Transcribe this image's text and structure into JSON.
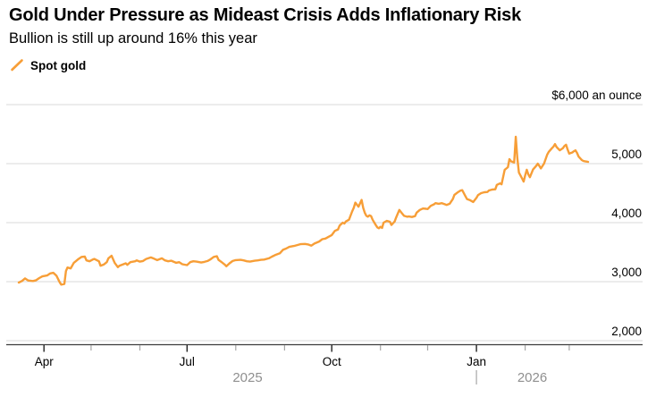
{
  "page": {
    "background": "#ffffff"
  },
  "header": {
    "title": "Gold Under Pressure as Mideast Crisis Adds Inflationary Risk",
    "subtitle": "Bullion is still up around 16% this year"
  },
  "legend": {
    "items": [
      {
        "label": "Spot gold",
        "marker": "diagonal-line",
        "color": "#F79E37"
      }
    ]
  },
  "style": {
    "line_color": "#F79E37",
    "grid_color": "#d8d8d8",
    "axis_color": "#3d3d3d",
    "tick_major_color": "#222222",
    "tick_minor_color": "#a6a6a6",
    "text_color": "#000000",
    "year_text_color": "#8f8f8f"
  },
  "chart_data": {
    "type": "line",
    "title": "Gold Under Pressure as Mideast Crisis Adds Inflationary Risk",
    "subtitle": "Bullion is still up around 16% this year",
    "unit_top_label": "$6,000 an ounce",
    "legend_position": "top-left",
    "grid": "horizontal",
    "x_range": [
      "2025-03-16",
      "2026-03-13"
    ],
    "y_axis": {
      "min": 2000,
      "max": 6000,
      "side": "right",
      "ticks": [
        {
          "value": 6000,
          "label": "$6,000 an ounce"
        },
        {
          "value": 5000,
          "label": "5,000"
        },
        {
          "value": 4000,
          "label": "4,000"
        },
        {
          "value": 3000,
          "label": "3,000"
        },
        {
          "value": 2000,
          "label": "2,000"
        }
      ]
    },
    "x_axis": {
      "major_ticks": [
        {
          "date": "2025-04-01",
          "label": "Apr"
        },
        {
          "date": "2025-07-01",
          "label": "Jul"
        },
        {
          "date": "2025-10-01",
          "label": "Oct"
        },
        {
          "date": "2026-01-01",
          "label": "Jan"
        }
      ],
      "minor_ticks": [
        "2025-05-01",
        "2025-06-01",
        "2025-08-01",
        "2025-09-01",
        "2025-11-01",
        "2025-12-01",
        "2026-02-01",
        "2026-03-01"
      ],
      "year_divider": "2026-01-01",
      "year_labels": [
        {
          "label": "2025",
          "span": [
            "2025-03-16",
            "2026-01-01"
          ]
        },
        {
          "label": "2026",
          "span": [
            "2026-01-01",
            "2026-03-13"
          ]
        }
      ]
    },
    "series": [
      {
        "name": "Spot gold",
        "color": "#F79E37",
        "points": [
          [
            "2025-03-16",
            2985
          ],
          [
            "2025-03-18",
            3010
          ],
          [
            "2025-03-20",
            3055
          ],
          [
            "2025-03-22",
            3020
          ],
          [
            "2025-03-25",
            3010
          ],
          [
            "2025-03-27",
            3025
          ],
          [
            "2025-03-29",
            3060
          ],
          [
            "2025-03-31",
            3090
          ],
          [
            "2025-04-03",
            3105
          ],
          [
            "2025-04-05",
            3140
          ],
          [
            "2025-04-07",
            3150
          ],
          [
            "2025-04-09",
            3100
          ],
          [
            "2025-04-11",
            2990
          ],
          [
            "2025-04-12",
            2950
          ],
          [
            "2025-04-14",
            2960
          ],
          [
            "2025-04-15",
            3180
          ],
          [
            "2025-04-16",
            3240
          ],
          [
            "2025-04-18",
            3225
          ],
          [
            "2025-04-20",
            3320
          ],
          [
            "2025-04-21",
            3340
          ],
          [
            "2025-04-23",
            3385
          ],
          [
            "2025-04-25",
            3420
          ],
          [
            "2025-04-27",
            3425
          ],
          [
            "2025-04-28",
            3360
          ],
          [
            "2025-04-30",
            3345
          ],
          [
            "2025-05-02",
            3375
          ],
          [
            "2025-05-03",
            3385
          ],
          [
            "2025-05-06",
            3345
          ],
          [
            "2025-05-07",
            3270
          ],
          [
            "2025-05-09",
            3290
          ],
          [
            "2025-05-11",
            3330
          ],
          [
            "2025-05-12",
            3395
          ],
          [
            "2025-05-14",
            3440
          ],
          [
            "2025-05-16",
            3320
          ],
          [
            "2025-05-18",
            3245
          ],
          [
            "2025-05-19",
            3270
          ],
          [
            "2025-05-21",
            3290
          ],
          [
            "2025-05-23",
            3310
          ],
          [
            "2025-05-24",
            3285
          ],
          [
            "2025-05-26",
            3330
          ],
          [
            "2025-05-29",
            3345
          ],
          [
            "2025-05-30",
            3360
          ],
          [
            "2025-06-01",
            3340
          ],
          [
            "2025-06-03",
            3350
          ],
          [
            "2025-06-05",
            3385
          ],
          [
            "2025-06-08",
            3410
          ],
          [
            "2025-06-10",
            3390
          ],
          [
            "2025-06-12",
            3365
          ],
          [
            "2025-06-15",
            3395
          ],
          [
            "2025-06-17",
            3360
          ],
          [
            "2025-06-19",
            3345
          ],
          [
            "2025-06-21",
            3355
          ],
          [
            "2025-06-24",
            3320
          ],
          [
            "2025-06-26",
            3330
          ],
          [
            "2025-06-28",
            3295
          ],
          [
            "2025-07-01",
            3280
          ],
          [
            "2025-07-03",
            3330
          ],
          [
            "2025-07-05",
            3345
          ],
          [
            "2025-07-07",
            3340
          ],
          [
            "2025-07-10",
            3325
          ],
          [
            "2025-07-12",
            3335
          ],
          [
            "2025-07-14",
            3350
          ],
          [
            "2025-07-16",
            3380
          ],
          [
            "2025-07-18",
            3420
          ],
          [
            "2025-07-20",
            3430
          ],
          [
            "2025-07-21",
            3370
          ],
          [
            "2025-07-23",
            3330
          ],
          [
            "2025-07-25",
            3290
          ],
          [
            "2025-07-26",
            3260
          ],
          [
            "2025-07-28",
            3310
          ],
          [
            "2025-07-30",
            3350
          ],
          [
            "2025-08-01",
            3365
          ],
          [
            "2025-08-04",
            3370
          ],
          [
            "2025-08-06",
            3360
          ],
          [
            "2025-08-08",
            3345
          ],
          [
            "2025-08-10",
            3340
          ],
          [
            "2025-08-13",
            3355
          ],
          [
            "2025-08-15",
            3360
          ],
          [
            "2025-08-17",
            3370
          ],
          [
            "2025-08-19",
            3375
          ],
          [
            "2025-08-22",
            3395
          ],
          [
            "2025-08-24",
            3425
          ],
          [
            "2025-08-26",
            3450
          ],
          [
            "2025-08-29",
            3480
          ],
          [
            "2025-08-31",
            3540
          ],
          [
            "2025-09-02",
            3560
          ],
          [
            "2025-09-04",
            3590
          ],
          [
            "2025-09-07",
            3605
          ],
          [
            "2025-09-09",
            3620
          ],
          [
            "2025-09-11",
            3635
          ],
          [
            "2025-09-14",
            3640
          ],
          [
            "2025-09-16",
            3630
          ],
          [
            "2025-09-18",
            3610
          ],
          [
            "2025-09-20",
            3645
          ],
          [
            "2025-09-23",
            3680
          ],
          [
            "2025-09-25",
            3720
          ],
          [
            "2025-09-27",
            3730
          ],
          [
            "2025-09-29",
            3760
          ],
          [
            "2025-10-01",
            3790
          ],
          [
            "2025-10-03",
            3860
          ],
          [
            "2025-10-05",
            3885
          ],
          [
            "2025-10-06",
            3950
          ],
          [
            "2025-10-08",
            4000
          ],
          [
            "2025-10-09",
            3985
          ],
          [
            "2025-10-10",
            4020
          ],
          [
            "2025-10-12",
            4050
          ],
          [
            "2025-10-14",
            4190
          ],
          [
            "2025-10-15",
            4250
          ],
          [
            "2025-10-16",
            4340
          ],
          [
            "2025-10-18",
            4270
          ],
          [
            "2025-10-20",
            4385
          ],
          [
            "2025-10-21",
            4250
          ],
          [
            "2025-10-22",
            4170
          ],
          [
            "2025-10-23",
            4115
          ],
          [
            "2025-10-24",
            4100
          ],
          [
            "2025-10-25",
            4125
          ],
          [
            "2025-10-26",
            4110
          ],
          [
            "2025-10-27",
            4050
          ],
          [
            "2025-10-29",
            3960
          ],
          [
            "2025-10-30",
            3920
          ],
          [
            "2025-10-31",
            3905
          ],
          [
            "2025-11-01",
            3930
          ],
          [
            "2025-11-02",
            3910
          ],
          [
            "2025-11-03",
            4000
          ],
          [
            "2025-11-05",
            4030
          ],
          [
            "2025-11-07",
            4015
          ],
          [
            "2025-11-08",
            3960
          ],
          [
            "2025-11-10",
            4020
          ],
          [
            "2025-11-11",
            4090
          ],
          [
            "2025-11-13",
            4215
          ],
          [
            "2025-11-14",
            4180
          ],
          [
            "2025-11-16",
            4115
          ],
          [
            "2025-11-18",
            4100
          ],
          [
            "2025-11-19",
            4105
          ],
          [
            "2025-11-21",
            4095
          ],
          [
            "2025-11-23",
            4110
          ],
          [
            "2025-11-24",
            4170
          ],
          [
            "2025-11-26",
            4215
          ],
          [
            "2025-11-28",
            4240
          ],
          [
            "2025-11-30",
            4235
          ],
          [
            "2025-12-01",
            4230
          ],
          [
            "2025-12-03",
            4285
          ],
          [
            "2025-12-05",
            4310
          ],
          [
            "2025-12-06",
            4330
          ],
          [
            "2025-12-08",
            4320
          ],
          [
            "2025-12-10",
            4330
          ],
          [
            "2025-12-12",
            4310
          ],
          [
            "2025-12-13",
            4300
          ],
          [
            "2025-12-15",
            4320
          ],
          [
            "2025-12-17",
            4400
          ],
          [
            "2025-12-18",
            4470
          ],
          [
            "2025-12-20",
            4510
          ],
          [
            "2025-12-22",
            4545
          ],
          [
            "2025-12-23",
            4550
          ],
          [
            "2025-12-25",
            4450
          ],
          [
            "2025-12-26",
            4400
          ],
          [
            "2025-12-28",
            4380
          ],
          [
            "2025-12-30",
            4350
          ],
          [
            "2026-01-01",
            4420
          ],
          [
            "2026-01-02",
            4465
          ],
          [
            "2026-01-04",
            4500
          ],
          [
            "2026-01-06",
            4515
          ],
          [
            "2026-01-08",
            4520
          ],
          [
            "2026-01-09",
            4545
          ],
          [
            "2026-01-11",
            4560
          ],
          [
            "2026-01-13",
            4565
          ],
          [
            "2026-01-14",
            4640
          ],
          [
            "2026-01-16",
            4665
          ],
          [
            "2026-01-17",
            4650
          ],
          [
            "2026-01-19",
            4895
          ],
          [
            "2026-01-21",
            4940
          ],
          [
            "2026-01-22",
            5075
          ],
          [
            "2026-01-23",
            5040
          ],
          [
            "2026-01-25",
            5020
          ],
          [
            "2026-01-26",
            5455
          ],
          [
            "2026-01-27",
            5100
          ],
          [
            "2026-01-28",
            4850
          ],
          [
            "2026-01-30",
            4750
          ],
          [
            "2026-01-31",
            4695
          ],
          [
            "2026-02-01",
            4800
          ],
          [
            "2026-02-02",
            4895
          ],
          [
            "2026-02-03",
            4820
          ],
          [
            "2026-02-04",
            4770
          ],
          [
            "2026-02-06",
            4900
          ],
          [
            "2026-02-08",
            4960
          ],
          [
            "2026-02-09",
            5000
          ],
          [
            "2026-02-10",
            4960
          ],
          [
            "2026-02-11",
            4920
          ],
          [
            "2026-02-13",
            5000
          ],
          [
            "2026-02-15",
            5150
          ],
          [
            "2026-02-16",
            5200
          ],
          [
            "2026-02-18",
            5260
          ],
          [
            "2026-02-19",
            5290
          ],
          [
            "2026-02-20",
            5330
          ],
          [
            "2026-02-21",
            5280
          ],
          [
            "2026-02-23",
            5225
          ],
          [
            "2026-02-25",
            5260
          ],
          [
            "2026-02-26",
            5300
          ],
          [
            "2026-02-27",
            5320
          ],
          [
            "2026-02-28",
            5240
          ],
          [
            "2026-03-01",
            5170
          ],
          [
            "2026-03-03",
            5190
          ],
          [
            "2026-03-04",
            5210
          ],
          [
            "2026-03-05",
            5225
          ],
          [
            "2026-03-06",
            5180
          ],
          [
            "2026-03-07",
            5120
          ],
          [
            "2026-03-08",
            5090
          ],
          [
            "2026-03-09",
            5060
          ],
          [
            "2026-03-10",
            5045
          ],
          [
            "2026-03-11",
            5040
          ],
          [
            "2026-03-12",
            5035
          ],
          [
            "2026-03-13",
            5030
          ]
        ]
      }
    ]
  }
}
